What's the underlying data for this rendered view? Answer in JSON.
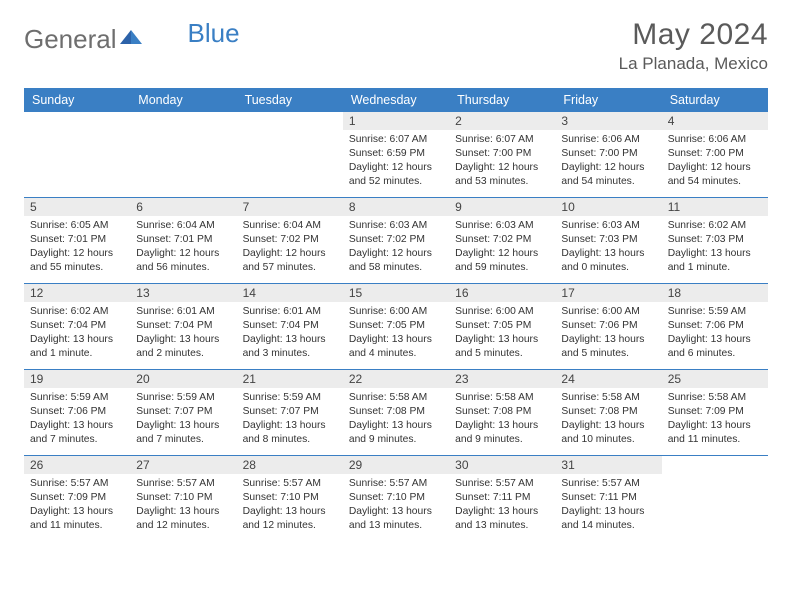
{
  "brand": {
    "part1": "General",
    "part2": "Blue"
  },
  "title": "May 2024",
  "location": "La Planada, Mexico",
  "colors": {
    "header_bg": "#3a7fc4",
    "daynum_bg": "#ececec",
    "text": "#333333",
    "brand_gray": "#6e6e6e",
    "brand_blue": "#3a7fc4"
  },
  "day_names": [
    "Sunday",
    "Monday",
    "Tuesday",
    "Wednesday",
    "Thursday",
    "Friday",
    "Saturday"
  ],
  "weeks": [
    [
      {
        "n": "",
        "lines": [
          "",
          "",
          "",
          ""
        ]
      },
      {
        "n": "",
        "lines": [
          "",
          "",
          "",
          ""
        ]
      },
      {
        "n": "",
        "lines": [
          "",
          "",
          "",
          ""
        ]
      },
      {
        "n": "1",
        "lines": [
          "Sunrise: 6:07 AM",
          "Sunset: 6:59 PM",
          "Daylight: 12 hours",
          "and 52 minutes."
        ]
      },
      {
        "n": "2",
        "lines": [
          "Sunrise: 6:07 AM",
          "Sunset: 7:00 PM",
          "Daylight: 12 hours",
          "and 53 minutes."
        ]
      },
      {
        "n": "3",
        "lines": [
          "Sunrise: 6:06 AM",
          "Sunset: 7:00 PM",
          "Daylight: 12 hours",
          "and 54 minutes."
        ]
      },
      {
        "n": "4",
        "lines": [
          "Sunrise: 6:06 AM",
          "Sunset: 7:00 PM",
          "Daylight: 12 hours",
          "and 54 minutes."
        ]
      }
    ],
    [
      {
        "n": "5",
        "lines": [
          "Sunrise: 6:05 AM",
          "Sunset: 7:01 PM",
          "Daylight: 12 hours",
          "and 55 minutes."
        ]
      },
      {
        "n": "6",
        "lines": [
          "Sunrise: 6:04 AM",
          "Sunset: 7:01 PM",
          "Daylight: 12 hours",
          "and 56 minutes."
        ]
      },
      {
        "n": "7",
        "lines": [
          "Sunrise: 6:04 AM",
          "Sunset: 7:02 PM",
          "Daylight: 12 hours",
          "and 57 minutes."
        ]
      },
      {
        "n": "8",
        "lines": [
          "Sunrise: 6:03 AM",
          "Sunset: 7:02 PM",
          "Daylight: 12 hours",
          "and 58 minutes."
        ]
      },
      {
        "n": "9",
        "lines": [
          "Sunrise: 6:03 AM",
          "Sunset: 7:02 PM",
          "Daylight: 12 hours",
          "and 59 minutes."
        ]
      },
      {
        "n": "10",
        "lines": [
          "Sunrise: 6:03 AM",
          "Sunset: 7:03 PM",
          "Daylight: 13 hours",
          "and 0 minutes."
        ]
      },
      {
        "n": "11",
        "lines": [
          "Sunrise: 6:02 AM",
          "Sunset: 7:03 PM",
          "Daylight: 13 hours",
          "and 1 minute."
        ]
      }
    ],
    [
      {
        "n": "12",
        "lines": [
          "Sunrise: 6:02 AM",
          "Sunset: 7:04 PM",
          "Daylight: 13 hours",
          "and 1 minute."
        ]
      },
      {
        "n": "13",
        "lines": [
          "Sunrise: 6:01 AM",
          "Sunset: 7:04 PM",
          "Daylight: 13 hours",
          "and 2 minutes."
        ]
      },
      {
        "n": "14",
        "lines": [
          "Sunrise: 6:01 AM",
          "Sunset: 7:04 PM",
          "Daylight: 13 hours",
          "and 3 minutes."
        ]
      },
      {
        "n": "15",
        "lines": [
          "Sunrise: 6:00 AM",
          "Sunset: 7:05 PM",
          "Daylight: 13 hours",
          "and 4 minutes."
        ]
      },
      {
        "n": "16",
        "lines": [
          "Sunrise: 6:00 AM",
          "Sunset: 7:05 PM",
          "Daylight: 13 hours",
          "and 5 minutes."
        ]
      },
      {
        "n": "17",
        "lines": [
          "Sunrise: 6:00 AM",
          "Sunset: 7:06 PM",
          "Daylight: 13 hours",
          "and 5 minutes."
        ]
      },
      {
        "n": "18",
        "lines": [
          "Sunrise: 5:59 AM",
          "Sunset: 7:06 PM",
          "Daylight: 13 hours",
          "and 6 minutes."
        ]
      }
    ],
    [
      {
        "n": "19",
        "lines": [
          "Sunrise: 5:59 AM",
          "Sunset: 7:06 PM",
          "Daylight: 13 hours",
          "and 7 minutes."
        ]
      },
      {
        "n": "20",
        "lines": [
          "Sunrise: 5:59 AM",
          "Sunset: 7:07 PM",
          "Daylight: 13 hours",
          "and 7 minutes."
        ]
      },
      {
        "n": "21",
        "lines": [
          "Sunrise: 5:59 AM",
          "Sunset: 7:07 PM",
          "Daylight: 13 hours",
          "and 8 minutes."
        ]
      },
      {
        "n": "22",
        "lines": [
          "Sunrise: 5:58 AM",
          "Sunset: 7:08 PM",
          "Daylight: 13 hours",
          "and 9 minutes."
        ]
      },
      {
        "n": "23",
        "lines": [
          "Sunrise: 5:58 AM",
          "Sunset: 7:08 PM",
          "Daylight: 13 hours",
          "and 9 minutes."
        ]
      },
      {
        "n": "24",
        "lines": [
          "Sunrise: 5:58 AM",
          "Sunset: 7:08 PM",
          "Daylight: 13 hours",
          "and 10 minutes."
        ]
      },
      {
        "n": "25",
        "lines": [
          "Sunrise: 5:58 AM",
          "Sunset: 7:09 PM",
          "Daylight: 13 hours",
          "and 11 minutes."
        ]
      }
    ],
    [
      {
        "n": "26",
        "lines": [
          "Sunrise: 5:57 AM",
          "Sunset: 7:09 PM",
          "Daylight: 13 hours",
          "and 11 minutes."
        ]
      },
      {
        "n": "27",
        "lines": [
          "Sunrise: 5:57 AM",
          "Sunset: 7:10 PM",
          "Daylight: 13 hours",
          "and 12 minutes."
        ]
      },
      {
        "n": "28",
        "lines": [
          "Sunrise: 5:57 AM",
          "Sunset: 7:10 PM",
          "Daylight: 13 hours",
          "and 12 minutes."
        ]
      },
      {
        "n": "29",
        "lines": [
          "Sunrise: 5:57 AM",
          "Sunset: 7:10 PM",
          "Daylight: 13 hours",
          "and 13 minutes."
        ]
      },
      {
        "n": "30",
        "lines": [
          "Sunrise: 5:57 AM",
          "Sunset: 7:11 PM",
          "Daylight: 13 hours",
          "and 13 minutes."
        ]
      },
      {
        "n": "31",
        "lines": [
          "Sunrise: 5:57 AM",
          "Sunset: 7:11 PM",
          "Daylight: 13 hours",
          "and 14 minutes."
        ]
      },
      {
        "n": "",
        "lines": [
          "",
          "",
          "",
          ""
        ]
      }
    ]
  ]
}
